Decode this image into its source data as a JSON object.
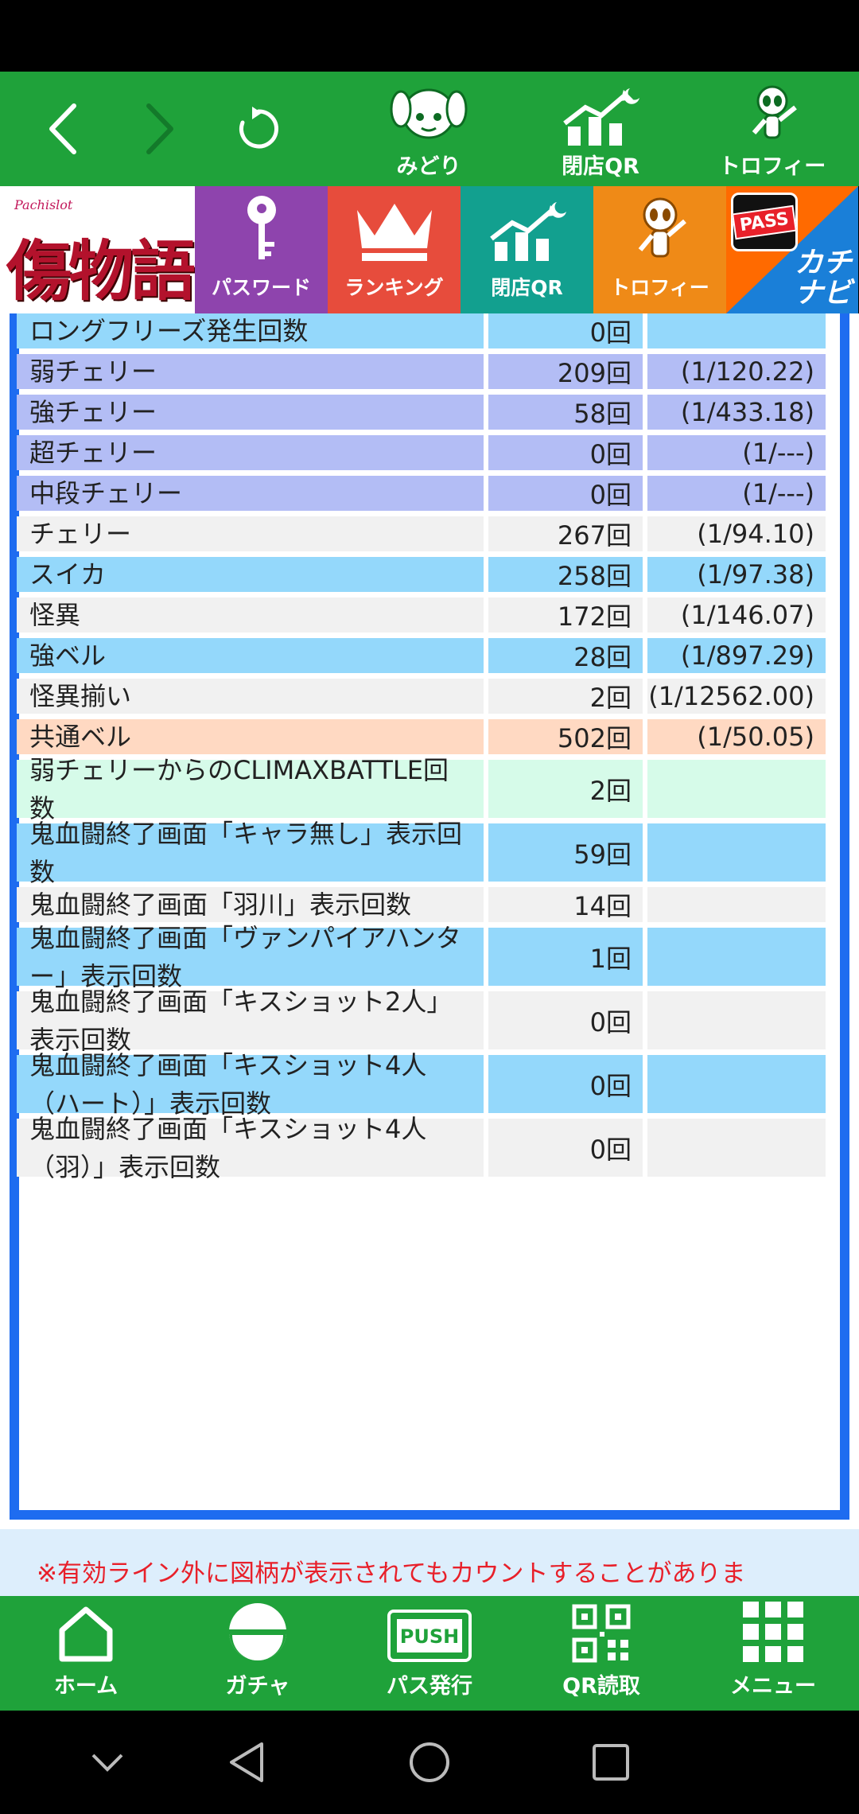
{
  "browser_toolbar": {
    "midori_label": "みどり",
    "closing_qr_label": "閉店QR",
    "trophy_label": "トロフィー"
  },
  "banner": {
    "logo_small": "Pachislot",
    "logo_main": "傷物語",
    "tiles": [
      {
        "label": "パスワード",
        "color": "#8e44ad"
      },
      {
        "label": "ランキング",
        "color": "#e74c3c"
      },
      {
        "label": "閉店QR",
        "color": "#12a08f"
      },
      {
        "label": "トロフィー",
        "color": "#ef8a17"
      }
    ],
    "pass_badge": "PASS",
    "kachi_line1": "カチ",
    "kachi_line2": "ナビ"
  },
  "rows": [
    {
      "label": "ロングフリーズ発生回数",
      "count": "0回",
      "prob": "",
      "bg": "#94d8fb"
    },
    {
      "label": "弱チェリー",
      "count": "209回",
      "prob": "(1/120.22)",
      "bg": "#b3bdf5"
    },
    {
      "label": "強チェリー",
      "count": "58回",
      "prob": "(1/433.18)",
      "bg": "#b3bdf5"
    },
    {
      "label": "超チェリー",
      "count": "0回",
      "prob": "(1/---)",
      "bg": "#b3bdf5"
    },
    {
      "label": "中段チェリー",
      "count": "0回",
      "prob": "(1/---)",
      "bg": "#b3bdf5"
    },
    {
      "label": "チェリー",
      "count": "267回",
      "prob": "(1/94.10)",
      "bg": "#f1f1f1"
    },
    {
      "label": "スイカ",
      "count": "258回",
      "prob": "(1/97.38)",
      "bg": "#94d8fb"
    },
    {
      "label": "怪異",
      "count": "172回",
      "prob": "(1/146.07)",
      "bg": "#f1f1f1"
    },
    {
      "label": "強ベル",
      "count": "28回",
      "prob": "(1/897.29)",
      "bg": "#94d8fb"
    },
    {
      "label": "怪異揃い",
      "count": "2回",
      "prob": "(1/12562.00)",
      "bg": "#f1f1f1"
    },
    {
      "label": "共通ベル",
      "count": "502回",
      "prob": "(1/50.05)",
      "bg": "#ffd9c2"
    },
    {
      "label": "弱チェリーからのCLIMAXBATTLE回数",
      "count": "2回",
      "prob": "",
      "bg": "#d6fbe9"
    },
    {
      "label": "鬼血闘終了画面「キャラ無し」表示回数",
      "count": "59回",
      "prob": "",
      "bg": "#94d8fb"
    },
    {
      "label": "鬼血闘終了画面「羽川」表示回数",
      "count": "14回",
      "prob": "",
      "bg": "#f1f1f1"
    },
    {
      "label": "鬼血闘終了画面「ヴァンパイアハンター」表示回数",
      "count": "1回",
      "prob": "",
      "bg": "#94d8fb"
    },
    {
      "label": "鬼血闘終了画面「キスショット2人」表示回数",
      "count": "0回",
      "prob": "",
      "bg": "#f1f1f1"
    },
    {
      "label": "鬼血闘終了画面「キスショット4人（ハート）」表示回数",
      "count": "0回",
      "prob": "",
      "bg": "#94d8fb"
    },
    {
      "label": "鬼血闘終了画面「キスショット4人（羽）」表示回数",
      "count": "0回",
      "prob": "",
      "bg": "#f1f1f1"
    }
  ],
  "notice": "※有効ライン外に図柄が表示されてもカウントすることがありま",
  "bottom_nav": {
    "home": "ホーム",
    "gacha": "ガチャ",
    "pass_issue": "パス発行",
    "qr_read": "QR読取",
    "menu": "メニュー",
    "push_badge": "PUSH"
  },
  "colors": {
    "toolbar_green": "#1fa23a",
    "frame_blue": "#1e6cf0",
    "notice_red": "#e8202a"
  }
}
